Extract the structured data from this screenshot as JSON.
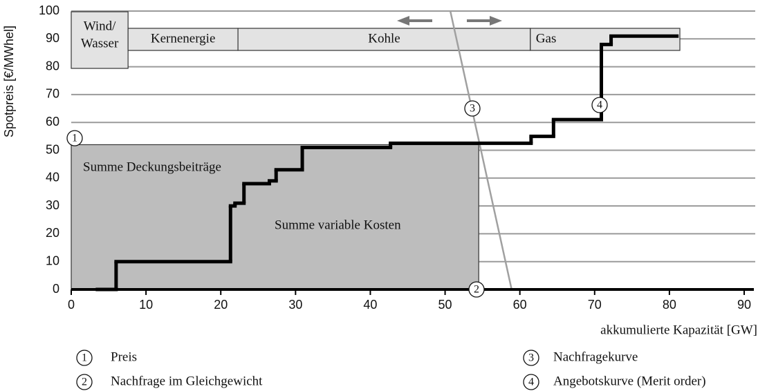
{
  "chart_data": {
    "type": "merit-order",
    "y_label": "Spotpreis [€/MWhel]",
    "x_label": "akkumulierte Kapazität [GW]",
    "xlim": [
      0,
      90
    ],
    "xticks": [
      0,
      10,
      20,
      30,
      40,
      50,
      60,
      70,
      80,
      90
    ],
    "ylim": [
      0,
      100
    ],
    "yticks": [
      0,
      10,
      20,
      30,
      40,
      50,
      60,
      70,
      80,
      90,
      100
    ],
    "grid": true,
    "supply": {
      "color": "#000000",
      "edges": [
        3.5,
        6,
        21.3,
        21.9,
        23.1,
        26.5,
        27.4,
        30.9,
        42.7,
        61.5,
        64.5,
        70.9,
        72.2,
        81
      ],
      "values": [
        0,
        10,
        30,
        31,
        38,
        39,
        43,
        51,
        52.5,
        55,
        61,
        88,
        91
      ]
    },
    "demand": {
      "color": "#a0a0a0",
      "x": [
        50.7,
        58.9
      ],
      "values": [
        100,
        0
      ]
    },
    "equilibrium": {
      "x": 54.5,
      "price": 52,
      "color": "#bdbdbd"
    },
    "bands": [
      {
        "lines": [
          "Wind/",
          "Wasser"
        ],
        "x": [
          0,
          7.6
        ]
      },
      {
        "lines": [
          "Kernenergie"
        ],
        "x": [
          7.6,
          22.3
        ]
      },
      {
        "lines": [
          "Kohle"
        ],
        "x": [
          22.3,
          61.4
        ]
      },
      {
        "lines": [
          "Gas"
        ],
        "x": [
          61.4,
          81.4
        ]
      }
    ],
    "area_labels": [
      "Summe Deckungsbeiträge",
      "Summe variable Kosten"
    ],
    "markers": [
      "1",
      "2",
      "3",
      "4"
    ],
    "legend": [
      {
        "number": "1",
        "text": "Preis"
      },
      {
        "number": "2",
        "text": "Nachfrage im Gleichgewicht"
      },
      {
        "number": "3",
        "text": "Nachfragekurve"
      },
      {
        "number": "4",
        "text": "Angebotskurve (Merit order)"
      }
    ]
  }
}
